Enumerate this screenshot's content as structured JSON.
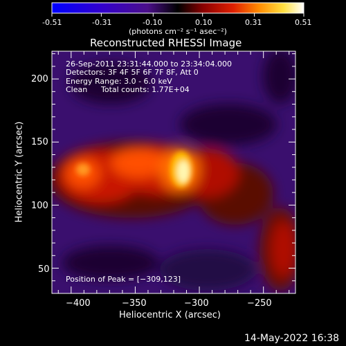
{
  "colorbar": {
    "tick_labels": [
      "-0.51",
      "-0.31",
      "-0.10",
      "0.10",
      "0.31",
      "0.51"
    ],
    "units": "(photons cm⁻² s⁻¹ asec⁻²)",
    "range": [
      -0.51,
      0.51
    ],
    "colors": [
      "#0000ff",
      "#3300cc",
      "#4b0f8a",
      "#000000",
      "#8a0000",
      "#e02000",
      "#ff8a00",
      "#ffe040",
      "#ffffff"
    ]
  },
  "chart_data": {
    "type": "heatmap",
    "title": "Reconstructed RHESSI Image",
    "xlabel": "Heliocentric X (arcsec)",
    "ylabel": "Heliocentric Y (arcsec)",
    "xlim": [
      -415,
      -225
    ],
    "ylim": [
      30,
      222
    ],
    "x_ticks": [
      -400,
      -350,
      -300,
      -250
    ],
    "y_ticks": [
      50,
      100,
      150,
      200
    ],
    "x_tick_labels": [
      "−400",
      "−350",
      "−300",
      "−250"
    ],
    "y_tick_labels": [
      "50",
      "100",
      "150",
      "200"
    ],
    "peak_position": [
      -309,
      123
    ],
    "peak_value": 0.51,
    "annotations": {
      "time": "26-Sep-2011 23:31:44.000 to 23:34:04.000",
      "detectors": "Detectors: 3F 4F 5F 6F 7F 8F, Att 0",
      "energy": "Energy Range: 3.0 - 6.0 keV",
      "method": "Clean",
      "counts": "Total counts: 1.77E+04",
      "peak": "Position of Peak = [−309,123]"
    }
  },
  "footer": {
    "date": "14-May-2022 16:38"
  }
}
